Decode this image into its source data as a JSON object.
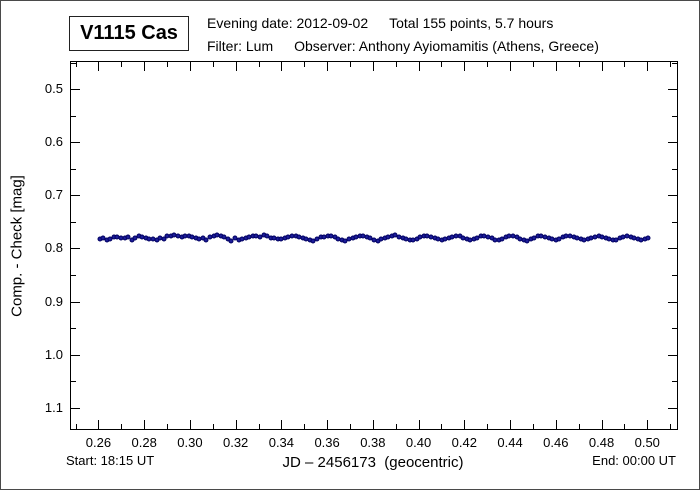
{
  "header": {
    "star_name": "V1115 Cas",
    "evening_date": "Evening date: 2012-09-02",
    "total_points": "Total 155 points, 5.7 hours",
    "filter": "Filter: Lum",
    "observer": "Observer: Anthony Ayiomamitis (Athens, Greece)"
  },
  "footer": {
    "start": "Start: 18:15 UT",
    "end": "End: 00:00 UT"
  },
  "chart_data": {
    "type": "scatter",
    "title": "V1115 Cas",
    "xlabel": "JD – 2456173  (geocentric)",
    "ylabel": "Comp. - Check [mag]",
    "xlim": [
      0.248,
      0.513
    ],
    "ylim": [
      0.449,
      1.14
    ],
    "y_axis_inverted_magnitude": true,
    "grid": false,
    "x_tick_values": [
      0.26,
      0.28,
      0.3,
      0.32,
      0.34,
      0.36,
      0.38,
      0.4,
      0.42,
      0.44,
      0.46,
      0.48,
      0.5
    ],
    "x_tick_labels": [
      "0.26",
      "0.28",
      "0.30",
      "0.32",
      "0.34",
      "0.36",
      "0.38",
      "0.40",
      "0.42",
      "0.44",
      "0.46",
      "0.48",
      "0.50"
    ],
    "x_minor_start": 0.25,
    "x_minor_step": 0.01,
    "y_tick_values": [
      0.5,
      0.6,
      0.7,
      0.8,
      0.9,
      1.0,
      1.1
    ],
    "y_tick_labels": [
      "0.5",
      "0.6",
      "0.7",
      "0.8",
      "0.9",
      "1.0",
      "1.1"
    ],
    "y_minor_start": 0.45,
    "y_minor_step": 0.05,
    "point_color": "#1c1c99",
    "point_edge_color": "#000060",
    "n_points": 155,
    "x_start": 0.2605,
    "x_step": 0.00155844,
    "values": [
      0.782,
      0.78,
      0.784,
      0.783,
      0.779,
      0.778,
      0.78,
      0.781,
      0.779,
      0.784,
      0.781,
      0.777,
      0.778,
      0.78,
      0.782,
      0.783,
      0.784,
      0.781,
      0.783,
      0.777,
      0.776,
      0.775,
      0.777,
      0.779,
      0.776,
      0.777,
      0.778,
      0.781,
      0.783,
      0.78,
      0.784,
      0.779,
      0.776,
      0.775,
      0.777,
      0.779,
      0.782,
      0.786,
      0.781,
      0.785,
      0.783,
      0.781,
      0.779,
      0.777,
      0.776,
      0.778,
      0.775,
      0.777,
      0.78,
      0.781,
      0.783,
      0.782,
      0.78,
      0.778,
      0.776,
      0.777,
      0.779,
      0.781,
      0.783,
      0.785,
      0.786,
      0.782,
      0.779,
      0.778,
      0.776,
      0.777,
      0.779,
      0.782,
      0.784,
      0.786,
      0.783,
      0.781,
      0.778,
      0.776,
      0.777,
      0.779,
      0.781,
      0.784,
      0.786,
      0.783,
      0.78,
      0.778,
      0.777,
      0.775,
      0.778,
      0.78,
      0.783,
      0.785,
      0.784,
      0.782,
      0.779,
      0.777,
      0.776,
      0.778,
      0.78,
      0.782,
      0.785,
      0.783,
      0.781,
      0.778,
      0.776,
      0.777,
      0.78,
      0.783,
      0.785,
      0.782,
      0.78,
      0.777,
      0.776,
      0.778,
      0.781,
      0.784,
      0.785,
      0.782,
      0.779,
      0.777,
      0.776,
      0.779,
      0.782,
      0.784,
      0.786,
      0.783,
      0.78,
      0.777,
      0.776,
      0.778,
      0.781,
      0.783,
      0.785,
      0.782,
      0.779,
      0.777,
      0.776,
      0.778,
      0.78,
      0.783,
      0.785,
      0.783,
      0.78,
      0.778,
      0.776,
      0.778,
      0.781,
      0.783,
      0.785,
      0.784,
      0.781,
      0.778,
      0.777,
      0.779,
      0.781,
      0.783,
      0.784,
      0.782,
      0.781
    ]
  }
}
